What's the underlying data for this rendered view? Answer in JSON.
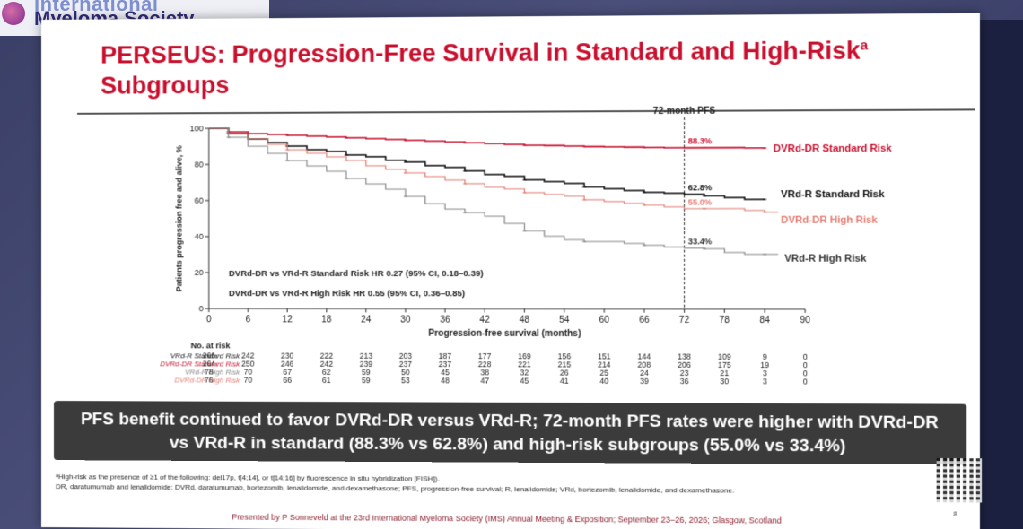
{
  "header": {
    "org_line1": "International",
    "org_line2": "Myeloma Society"
  },
  "slide": {
    "title_main": "PERSEUS: Progression-Free Survival in Standard and High-Risk",
    "title_sup": "a",
    "title_end": " Subgroups",
    "banner": "PFS benefit continued to favor DVRd-DR versus VRd-R; 72-month PFS rates were higher with DVRd-DR vs VRd-R in standard (88.3% vs 62.8%) and high-risk subgroups (55.0% vs 33.4%)",
    "footnote1": "ᵃHigh-risk as the presence of ≥1 of the following: del17p, t[4;14], or t[14;16] by fluorescence in situ hybridization [FISH]).",
    "footnote2": "DR, daratumumab and lenalidomide; DVRd, daratumumab, bortezomib, lenalidomide, and dexamethasone; PFS, progression-free survival; R, lenalidomide; VRd, bortezomib, lenalidomide, and dexamethasone.",
    "presented": "Presented by P Sonneveld at the 23rd International Myeloma Society (IMS) Annual Meeting & Exposition; September 23–26, 2026; Glasgow, Scotland",
    "page_number": "8"
  },
  "chart_data": {
    "type": "line",
    "title": "",
    "xlabel": "Progression-free survival (months)",
    "ylabel": "Patients progression free and alive, %",
    "xlim": [
      0,
      90
    ],
    "ylim": [
      0,
      100
    ],
    "x_ticks": [
      "0",
      "6",
      "12",
      "18",
      "24",
      "30",
      "36",
      "42",
      "48",
      "54",
      "60",
      "66",
      "72",
      "78",
      "84",
      "90"
    ],
    "y_ticks": [
      "0",
      "20",
      "40",
      "60",
      "80",
      "100"
    ],
    "landmark": {
      "x": 72,
      "label": "72-month PFS"
    },
    "hr_texts": [
      "DVRd-DR vs VRd-R Standard Risk HR 0.27 (95% CI, 0.18–0.39)",
      "DVRd-DR vs VRd-R High Risk HR 0.55 (95% CI, 0.36–0.85)"
    ],
    "series": [
      {
        "name": "DVRd-DR Standard Risk",
        "color": "#c8102e",
        "width": 1.6,
        "label_at_72": "88.3%",
        "x": [
          0,
          3,
          6,
          9,
          12,
          15,
          18,
          21,
          24,
          27,
          30,
          33,
          36,
          39,
          42,
          45,
          48,
          51,
          54,
          57,
          60,
          63,
          66,
          69,
          72,
          75,
          78,
          81,
          84
        ],
        "y": [
          100,
          98,
          97,
          96.5,
          96,
          95.5,
          95,
          94.5,
          94,
          93.5,
          93,
          92.5,
          92,
          91.5,
          91,
          90.5,
          90,
          89.8,
          89.5,
          89.2,
          89,
          88.8,
          88.6,
          88.4,
          88.3,
          88.3,
          88.3,
          88.1,
          88.0
        ]
      },
      {
        "name": "VRd-R Standard Risk",
        "color": "#111111",
        "width": 1.6,
        "label_at_72": "62.8%",
        "x": [
          0,
          3,
          6,
          9,
          12,
          15,
          18,
          21,
          24,
          27,
          30,
          33,
          36,
          39,
          42,
          45,
          48,
          51,
          54,
          57,
          60,
          63,
          66,
          69,
          72,
          75,
          78,
          81,
          84
        ],
        "y": [
          100,
          97,
          94,
          92,
          90,
          88,
          87,
          85,
          84,
          82,
          81,
          79,
          78,
          76,
          74,
          73,
          71,
          70,
          69,
          67,
          66,
          65,
          64,
          63.5,
          62.8,
          62,
          61,
          60,
          60
        ]
      },
      {
        "name": "DVRd-DR High Risk",
        "color": "#e47b70",
        "width": 1.2,
        "label_at_72": "55.0%",
        "x": [
          0,
          3,
          6,
          9,
          12,
          15,
          18,
          21,
          24,
          27,
          30,
          33,
          36,
          39,
          42,
          45,
          48,
          51,
          54,
          57,
          60,
          63,
          66,
          69,
          72,
          75,
          78,
          81,
          84,
          86
        ],
        "y": [
          100,
          97,
          94,
          91,
          88,
          86,
          84,
          82,
          79,
          77,
          75,
          73,
          71,
          69,
          67,
          66,
          64,
          63,
          62,
          60,
          59,
          58,
          57,
          56,
          55,
          55,
          55,
          54,
          53,
          53
        ]
      },
      {
        "name": "VRd-R High Risk",
        "color": "#888888",
        "width": 1.2,
        "label_at_72": "33.4%",
        "x": [
          0,
          3,
          6,
          9,
          12,
          15,
          18,
          21,
          24,
          27,
          30,
          33,
          36,
          39,
          42,
          45,
          48,
          51,
          54,
          57,
          60,
          63,
          66,
          69,
          72,
          75,
          78,
          81,
          84,
          86
        ],
        "y": [
          100,
          95,
          90,
          86,
          82,
          79,
          76,
          72,
          69,
          66,
          62,
          58,
          55,
          53,
          51,
          47,
          43,
          40,
          38,
          37,
          37,
          36,
          35,
          34,
          33.4,
          33,
          31,
          30,
          30,
          30
        ]
      }
    ]
  },
  "risk_table": {
    "title": "No. at risk",
    "times": [
      "0",
      "6",
      "12",
      "18",
      "24",
      "30",
      "36",
      "42",
      "48",
      "54",
      "60",
      "66",
      "72",
      "78",
      "84",
      "90"
    ],
    "rows": [
      {
        "label": "VRd-R Standard Risk",
        "color": "#111111",
        "values": [
          "266",
          "242",
          "230",
          "222",
          "213",
          "203",
          "187",
          "177",
          "169",
          "156",
          "151",
          "144",
          "138",
          "109",
          "9",
          "0"
        ]
      },
      {
        "label": "DVRd-DR Standard Risk",
        "color": "#c8102e",
        "values": [
          "264",
          "250",
          "246",
          "242",
          "239",
          "237",
          "237",
          "228",
          "221",
          "215",
          "214",
          "208",
          "206",
          "175",
          "19",
          "0"
        ]
      },
      {
        "label": "VRd-R High Risk",
        "color": "#888888",
        "values": [
          "78",
          "70",
          "67",
          "62",
          "59",
          "50",
          "45",
          "38",
          "32",
          "26",
          "25",
          "24",
          "23",
          "21",
          "3",
          "0"
        ]
      },
      {
        "label": "DVRd-DR High Risk",
        "color": "#e47b70",
        "values": [
          "76",
          "70",
          "66",
          "61",
          "59",
          "53",
          "48",
          "47",
          "45",
          "41",
          "40",
          "39",
          "36",
          "30",
          "3",
          "0"
        ]
      }
    ]
  }
}
